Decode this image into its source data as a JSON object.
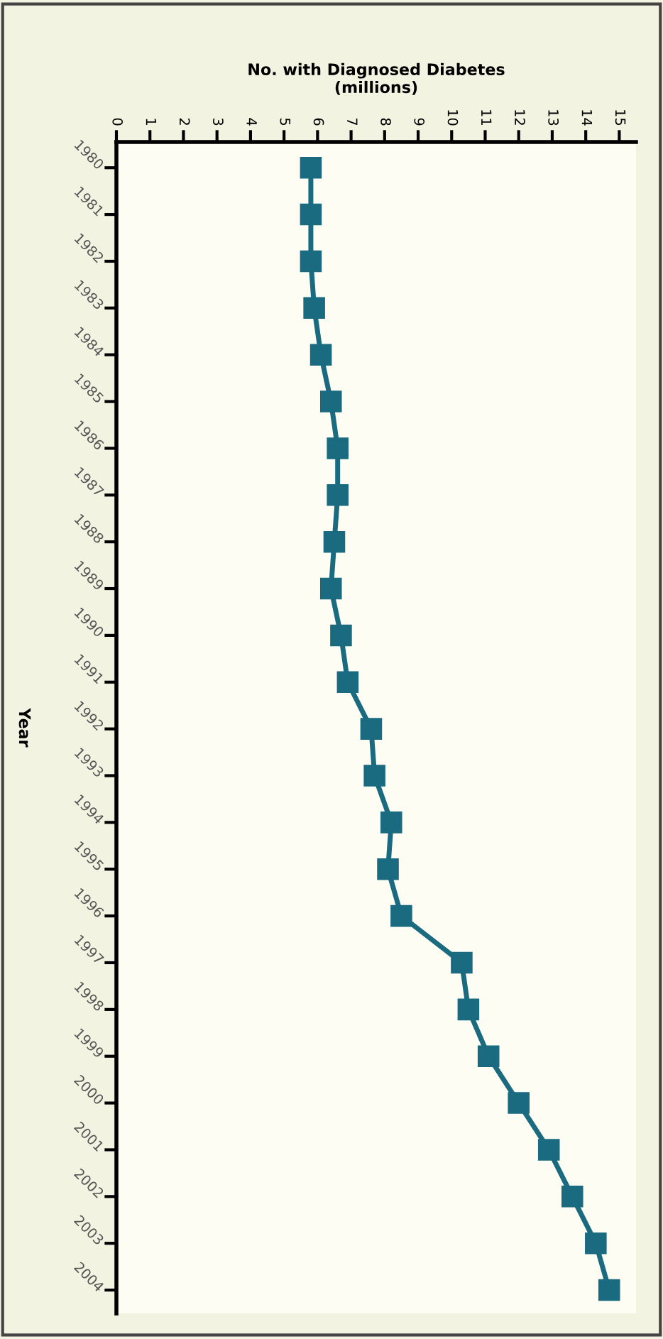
{
  "chart_data": {
    "type": "line",
    "orientation": "horizontal",
    "xlabel": "No. with Diagnosed Diabetes\n(millions)",
    "ylabel": "Year",
    "categories": [
      "1980",
      "1981",
      "1982",
      "1983",
      "1984",
      "1985",
      "1986",
      "1987",
      "1988",
      "1989",
      "1990",
      "1991",
      "1992",
      "1993",
      "1994",
      "1995",
      "1996",
      "1997",
      "1998",
      "1999",
      "2000",
      "2001",
      "2002",
      "2003",
      "2004"
    ],
    "series": [
      {
        "color": "#1a6a80",
        "values": [
          5.8,
          5.8,
          5.8,
          5.9,
          6.1,
          6.4,
          6.6,
          6.6,
          6.5,
          6.4,
          6.7,
          6.9,
          7.6,
          7.7,
          8.2,
          8.1,
          8.5,
          10.3,
          10.5,
          11.1,
          12.0,
          12.9,
          13.6,
          14.3,
          14.7
        ]
      }
    ],
    "xlim": [
      0,
      15.5
    ],
    "xticks": [
      0,
      1,
      2,
      3,
      4,
      5,
      6,
      7,
      8,
      9,
      10,
      11,
      12,
      13,
      14,
      15
    ],
    "marker": "square",
    "line_style": "solid",
    "grid": false,
    "legend": false
  }
}
